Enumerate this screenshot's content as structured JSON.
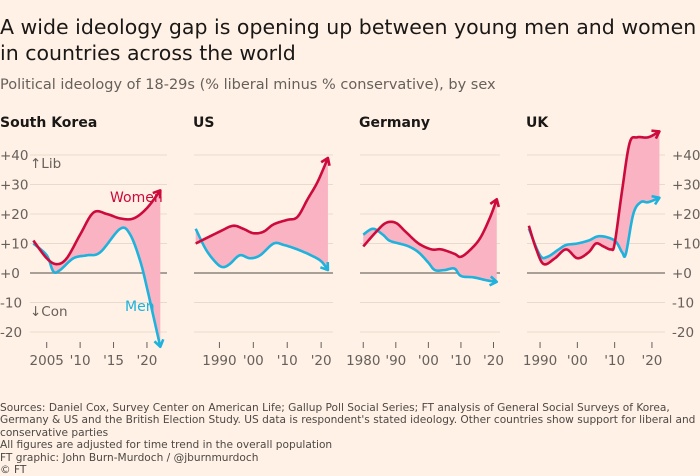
{
  "header": {
    "title": "A wide ideology gap is opening up between young men and women in countries across the world",
    "subtitle": "Political ideology of 18-29s (% liberal minus % conservative), by sex"
  },
  "footer": {
    "sources": "Sources: Daniel Cox, Survey Center on American Life; Gallup Poll Social Series; FT analysis of General Social Surveys of Korea, Germany & US and the British Election Study. US data is respondent's stated ideology. Other countries show support for liberal and conservative parties",
    "note": "All figures are adjusted for time trend in the overall population",
    "credit": "FT graphic: John Burn-Murdoch / @jburnmurdoch",
    "copyright": "© FT"
  },
  "colors": {
    "women": "#cc0a3c",
    "men": "#1eb2dc",
    "gap": "#f9b3c3",
    "zero": "#8c847d",
    "grid": "#e8dacd"
  },
  "chart_data": {
    "type": "line",
    "ylim": [
      -25,
      45
    ],
    "yticks": [
      "+40",
      "+30",
      "+20",
      "+10",
      "+0",
      "-10",
      "-20"
    ],
    "ytick_values": [
      40,
      30,
      20,
      10,
      0,
      -10,
      -20
    ],
    "axis_annotations": {
      "up": "↑Lib",
      "down": "↓Con"
    },
    "series_labels": {
      "women": "Women",
      "men": "Men"
    },
    "panels": [
      {
        "title": "South Korea",
        "xticks": [
          "2005",
          "'10",
          "'15",
          "'20"
        ],
        "xtick_values": [
          2005,
          2010,
          2015,
          2020
        ],
        "xlim": [
          2002.5,
          2023
        ],
        "women": [
          [
            2003,
            11
          ],
          [
            2005,
            5
          ],
          [
            2006.5,
            3
          ],
          [
            2008,
            5
          ],
          [
            2010,
            13
          ],
          [
            2012,
            20.5
          ],
          [
            2014,
            20
          ],
          [
            2016,
            18.5
          ],
          [
            2018,
            18.5
          ],
          [
            2020,
            22
          ],
          [
            2022,
            28
          ]
        ],
        "men": [
          [
            2003,
            10
          ],
          [
            2005,
            6
          ],
          [
            2006,
            0.5
          ],
          [
            2007,
            1
          ],
          [
            2009,
            5
          ],
          [
            2011,
            6
          ],
          [
            2013,
            7
          ],
          [
            2016,
            15
          ],
          [
            2017.5,
            13
          ],
          [
            2019,
            4
          ],
          [
            2020,
            -5
          ],
          [
            2021,
            -15
          ],
          [
            2022,
            -25
          ]
        ]
      },
      {
        "title": "US",
        "xticks": [
          "1990",
          "'00",
          "'10",
          "'20"
        ],
        "xtick_values": [
          1990,
          2000,
          2010,
          2020
        ],
        "xlim": [
          1982.5,
          2023.5
        ],
        "women": [
          [
            1983,
            10
          ],
          [
            1990,
            14
          ],
          [
            1994,
            16
          ],
          [
            1997,
            15
          ],
          [
            2000,
            13.5
          ],
          [
            2003,
            14
          ],
          [
            2006,
            16.5
          ],
          [
            2010,
            18
          ],
          [
            2013,
            19
          ],
          [
            2016,
            25
          ],
          [
            2019,
            31
          ],
          [
            2022,
            39
          ]
        ],
        "men": [
          [
            1983,
            15
          ],
          [
            1986,
            8
          ],
          [
            1989,
            3.5
          ],
          [
            1991,
            2
          ],
          [
            1993,
            3
          ],
          [
            1996,
            6
          ],
          [
            1999,
            5
          ],
          [
            2002,
            6
          ],
          [
            2006,
            10
          ],
          [
            2009,
            9.5
          ],
          [
            2013,
            8
          ],
          [
            2017,
            6
          ],
          [
            2020,
            4
          ],
          [
            2022,
            1
          ]
        ]
      },
      {
        "title": "Germany",
        "xticks": [
          "1980",
          "'90",
          "'00",
          "'10",
          "'20"
        ],
        "xtick_values": [
          1980,
          1990,
          2000,
          2010,
          2020
        ],
        "xlim": [
          1979,
          2022
        ],
        "women": [
          [
            1980,
            9
          ],
          [
            1984,
            14
          ],
          [
            1987,
            17
          ],
          [
            1990,
            17
          ],
          [
            1993,
            14
          ],
          [
            1997,
            10
          ],
          [
            2001,
            8
          ],
          [
            2004,
            8
          ],
          [
            2008,
            6.5
          ],
          [
            2010,
            5.5
          ],
          [
            2013,
            8
          ],
          [
            2016,
            12
          ],
          [
            2019,
            19
          ],
          [
            2021,
            25
          ]
        ],
        "men": [
          [
            1980,
            13
          ],
          [
            1983,
            15
          ],
          [
            1986,
            13
          ],
          [
            1988,
            11
          ],
          [
            1991,
            10
          ],
          [
            1994,
            9
          ],
          [
            1997,
            7
          ],
          [
            2000,
            3.5
          ],
          [
            2002,
            1
          ],
          [
            2005,
            1
          ],
          [
            2008,
            1.5
          ],
          [
            2010,
            -1
          ],
          [
            2014,
            -1.5
          ],
          [
            2018,
            -2.5
          ],
          [
            2021,
            -3
          ]
        ]
      },
      {
        "title": "UK",
        "xticks": [
          "1990",
          "'00",
          "'10",
          "'20"
        ],
        "xtick_values": [
          1990,
          2000,
          2010,
          2020
        ],
        "xlim": [
          1986.5,
          2023.5
        ],
        "women": [
          [
            1987,
            16
          ],
          [
            1989,
            8
          ],
          [
            1991,
            3
          ],
          [
            1994,
            5
          ],
          [
            1997,
            8
          ],
          [
            2000,
            5
          ],
          [
            2003,
            7
          ],
          [
            2005,
            10
          ],
          [
            2007,
            9
          ],
          [
            2009,
            8
          ],
          [
            2010,
            10
          ],
          [
            2012,
            28
          ],
          [
            2014,
            44
          ],
          [
            2016,
            46
          ],
          [
            2019,
            46
          ],
          [
            2022,
            48
          ]
        ],
        "men": [
          [
            1987,
            15
          ],
          [
            1990,
            6
          ],
          [
            1992,
            5.5
          ],
          [
            1995,
            8
          ],
          [
            1997,
            9.5
          ],
          [
            2000,
            10
          ],
          [
            2003,
            11
          ],
          [
            2006,
            12.5
          ],
          [
            2010,
            11
          ],
          [
            2012,
            7
          ],
          [
            2013,
            6.5
          ],
          [
            2015,
            20
          ],
          [
            2017,
            24
          ],
          [
            2019,
            24
          ],
          [
            2022,
            25.5
          ]
        ]
      }
    ]
  }
}
